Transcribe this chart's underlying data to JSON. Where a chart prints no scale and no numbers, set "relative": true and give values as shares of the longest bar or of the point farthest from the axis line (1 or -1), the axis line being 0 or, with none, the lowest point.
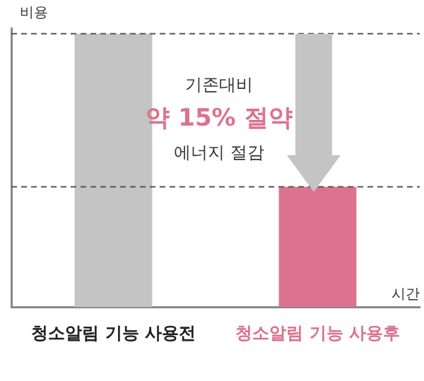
{
  "chart_data": {
    "type": "bar",
    "relative": true,
    "ylabel": "비용",
    "xlabel": "시간",
    "categories": [
      "청소알림 기능 사용전",
      "청소알림 기능 사용후"
    ],
    "values": [
      1,
      0.44
    ],
    "colors": [
      "#c4c4c4",
      "#dc738e"
    ],
    "ref_lines": [
      {
        "axis": "y",
        "value": 1,
        "color": "#555555",
        "line_style": "dashed"
      },
      {
        "axis": "y",
        "value": 0.44,
        "color": "#555555",
        "line_style": "dashed"
      }
    ],
    "annotations": [
      "기존대비",
      "약 15% 절약",
      "에너지 절감"
    ],
    "grid": false,
    "legend": false
  }
}
